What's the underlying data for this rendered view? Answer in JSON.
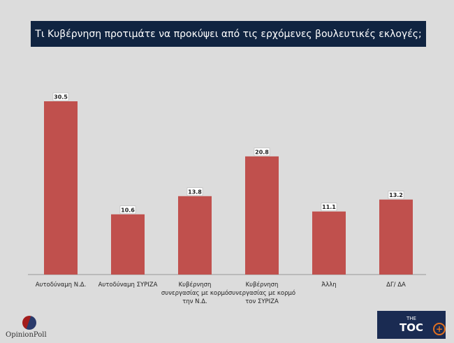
{
  "chart_data": {
    "type": "bar",
    "title": "Τι Κυβέρνηση προτιμάτε να προκύψει από τις ερχόμενες βουλευτικές εκλογές;",
    "categories": [
      "Αυτοδύναμη Ν.Δ.",
      "Αυτοδύναμη ΣΥΡΙΖΑ",
      "Κυβέρνηση συνεργασίας με κορμό την Ν.Δ.",
      "Κυβέρνηση συνεργασίας με κορμό τον ΣΥΡΙΖΑ",
      "Άλλη",
      "ΔΓ/ ΔΑ"
    ],
    "values": [
      30.5,
      10.6,
      13.8,
      20.8,
      11.1,
      13.2
    ],
    "ylim": [
      0,
      32
    ],
    "grid": false,
    "bar_color": "#c0504d"
  },
  "logos": {
    "left": "OpinionPoll",
    "right_top": "THE",
    "right": "TOC"
  },
  "icons": {
    "zoom": "zoom-in-icon"
  }
}
